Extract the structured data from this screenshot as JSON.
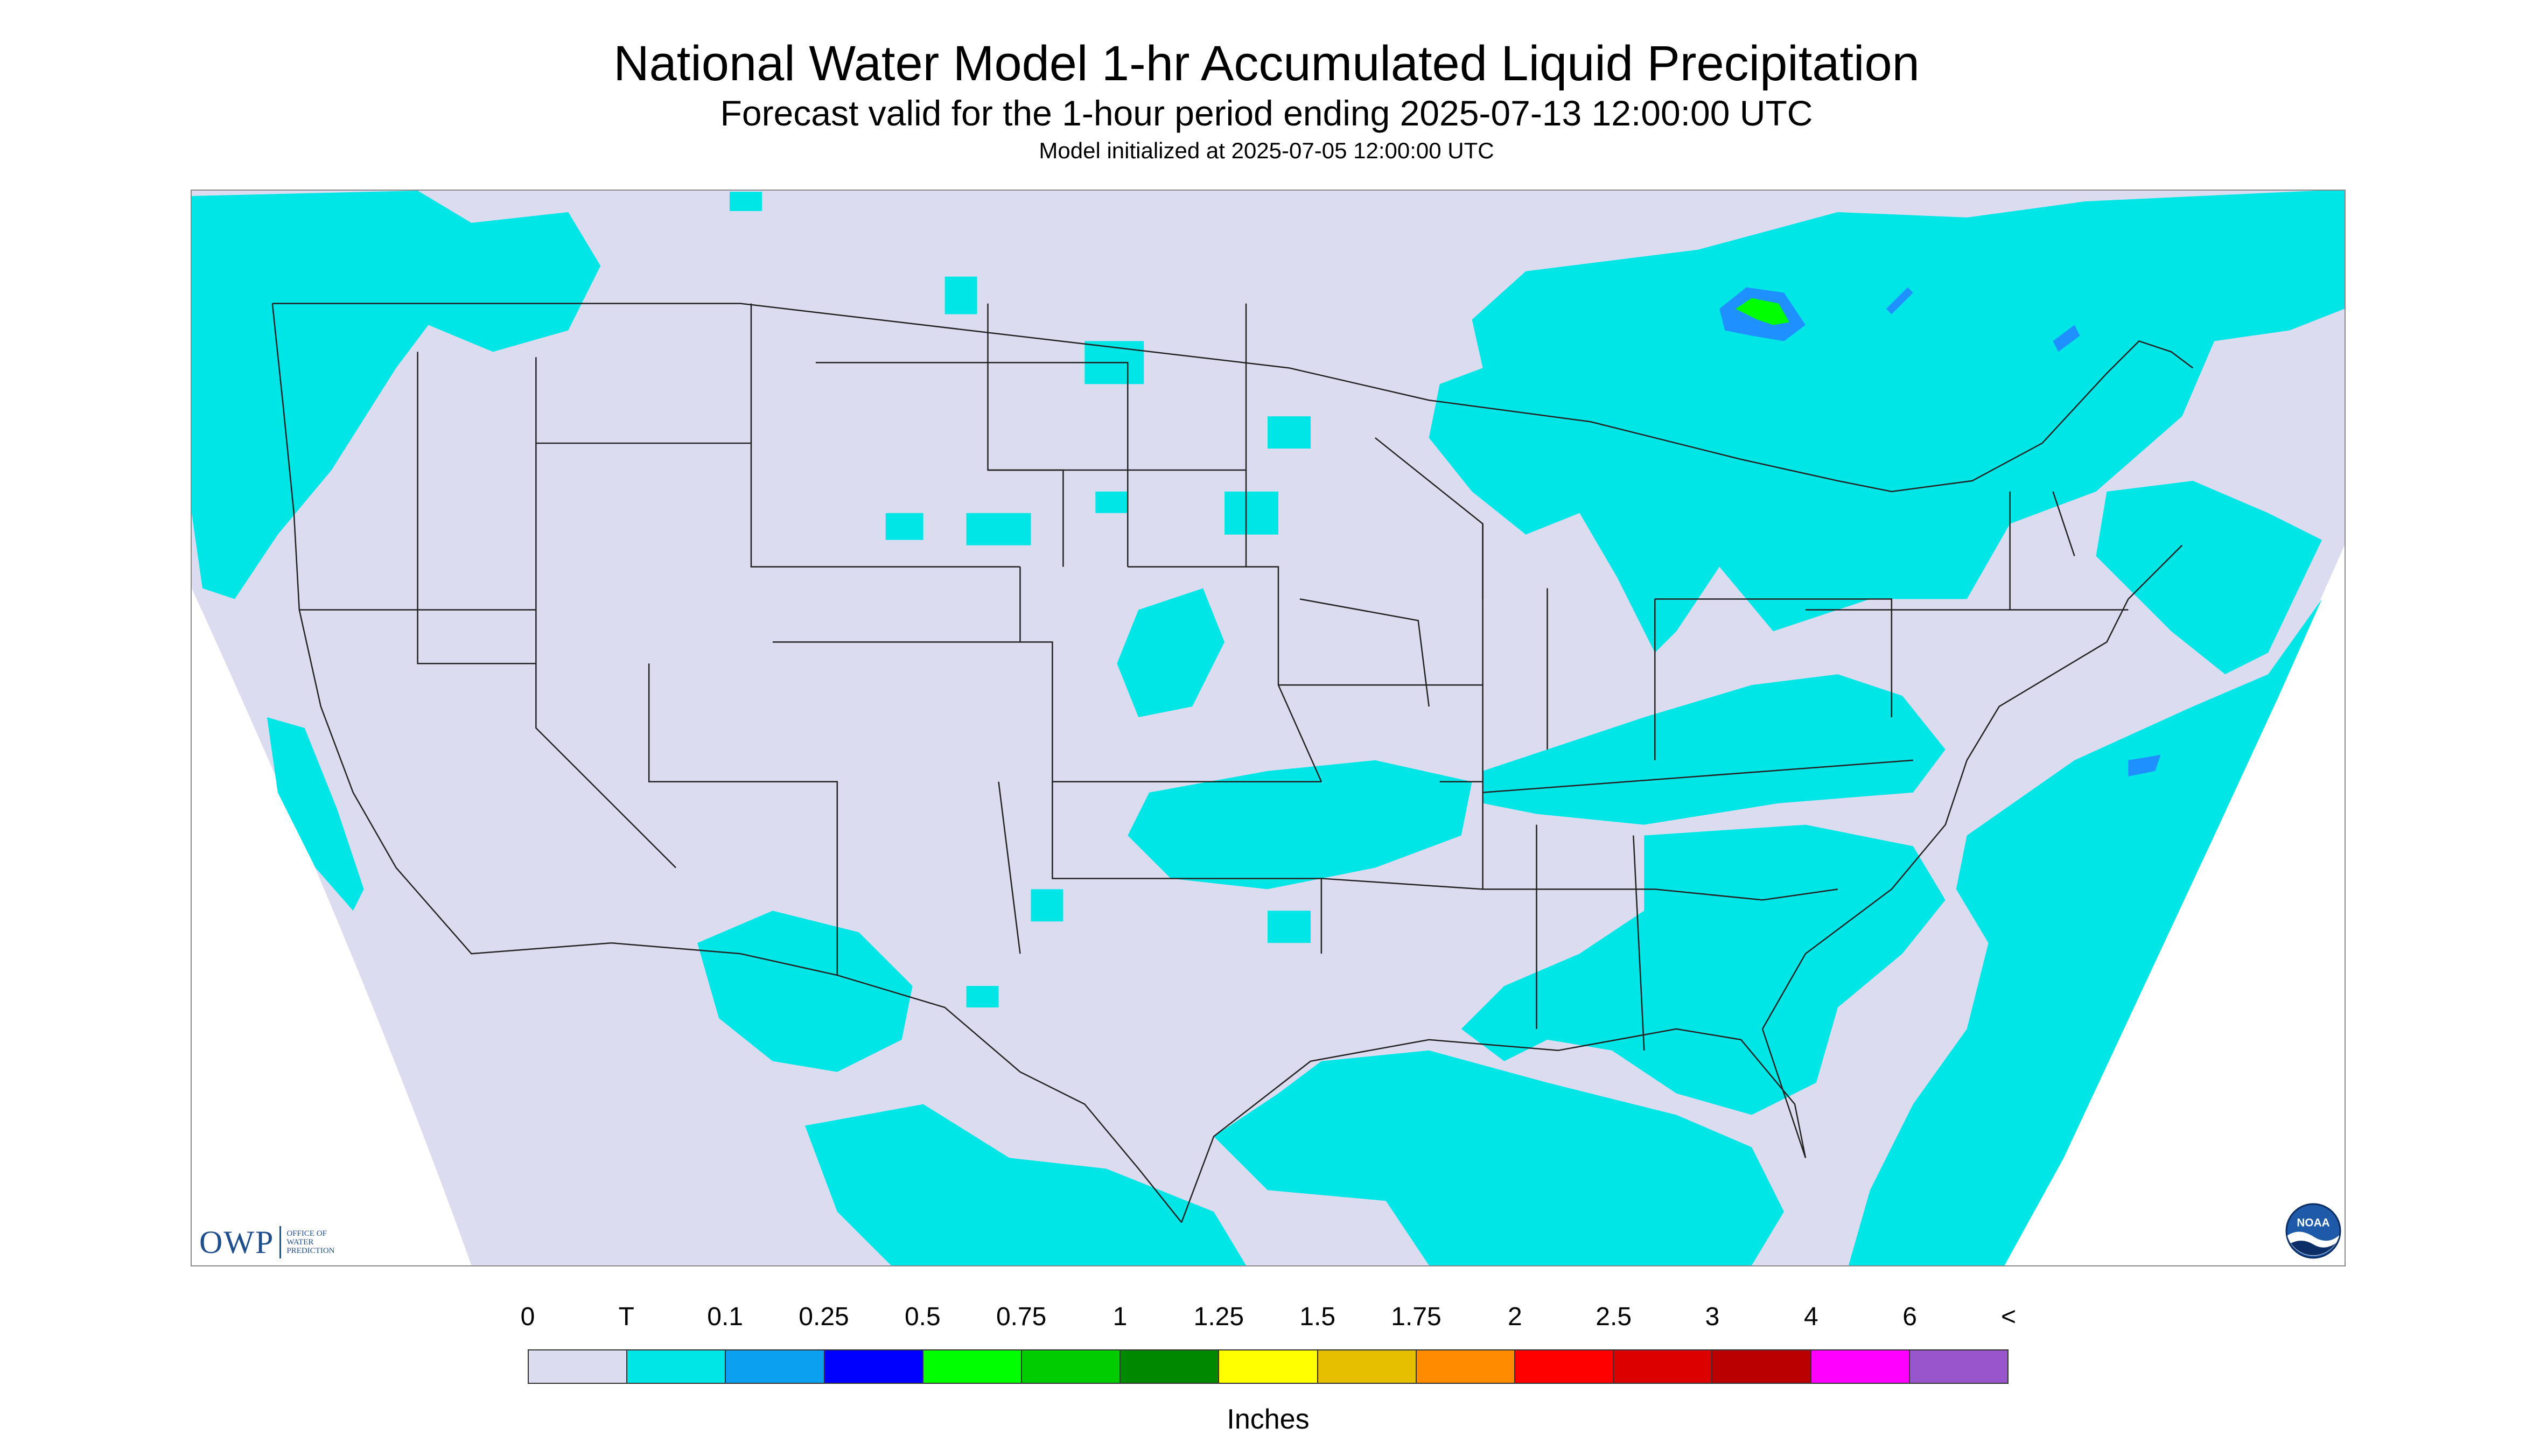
{
  "title": "National Water Model 1-hr Accumulated Liquid Precipitation",
  "subtitle": "Forecast valid for the 1-hour period ending 2025-07-13 12:00:00 UTC",
  "init_line": "Model initialized at 2025-07-05 12:00:00 UTC",
  "logos": {
    "owp_text": "OWP",
    "owp_sub": [
      "OFFICE OF",
      "WATER",
      "PREDICTION"
    ],
    "noaa_text": "NOAA"
  },
  "map": {
    "background_color": "#dcdcf0",
    "outside_color": "#ffffff",
    "boundary_color": "#222222",
    "precip_color_trace": "#00e5e5",
    "precip_color_light": "#1e90ff",
    "precip_color_moderate": "#00ff00"
  },
  "legend": {
    "labels": [
      "0",
      "T",
      "0.1",
      "0.25",
      "0.5",
      "0.75",
      "1",
      "1.25",
      "1.5",
      "1.75",
      "2",
      "2.5",
      "3",
      "4",
      "6",
      "<"
    ],
    "colors": [
      "#dcdcf0",
      "#00e5e5",
      "#0ba0f0",
      "#0000ff",
      "#00ff00",
      "#00cc00",
      "#008800",
      "#ffff00",
      "#e6c000",
      "#ff8c00",
      "#ff0000",
      "#dd0000",
      "#bb0000",
      "#ff00ff",
      "#9955cc"
    ],
    "units": "Inches"
  }
}
